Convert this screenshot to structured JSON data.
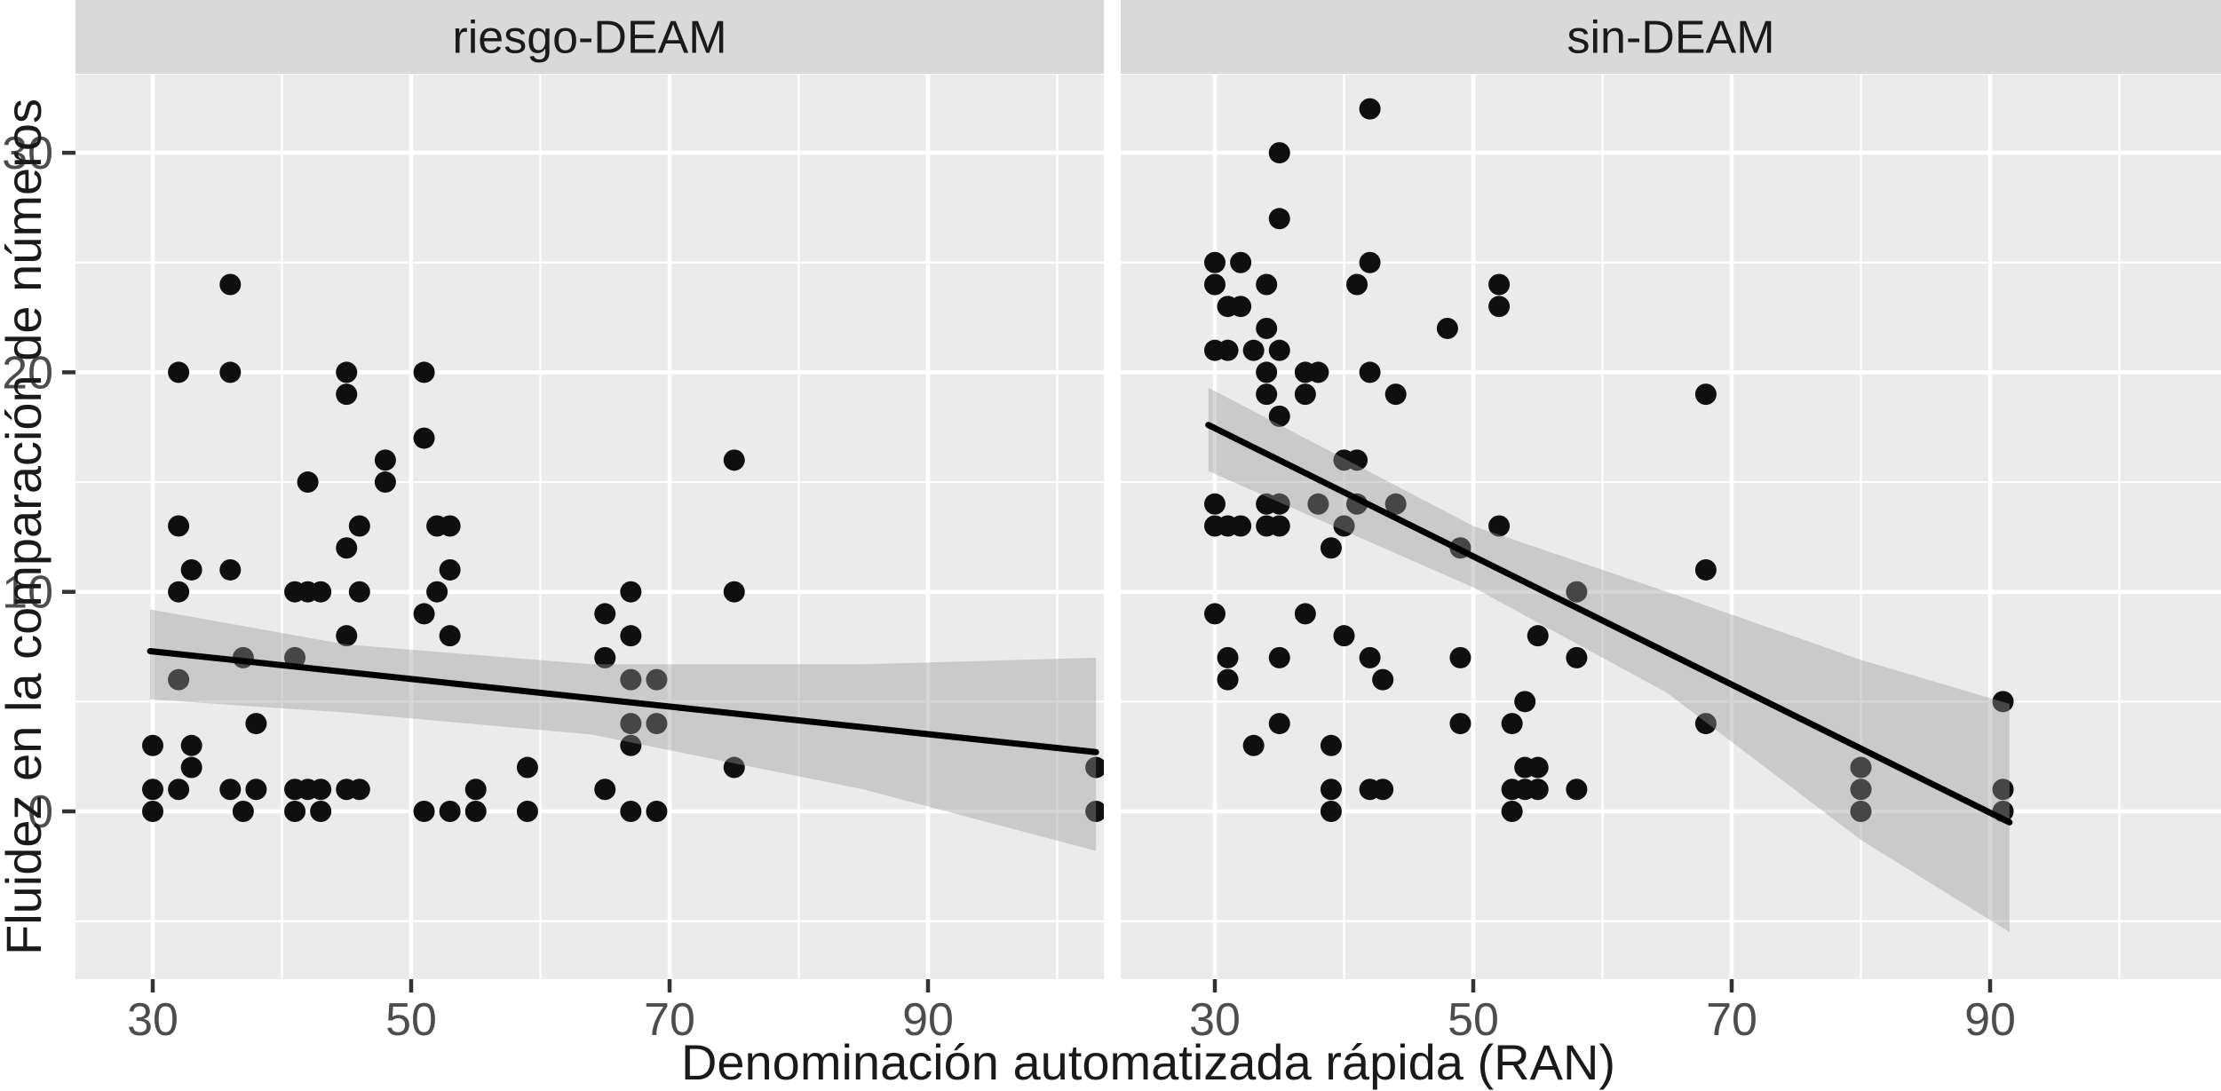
{
  "chart_data": {
    "type": "scatter",
    "xlabel": "Denominación automatizada rápida (RAN)",
    "ylabel": "Fluidez en la comparación de números",
    "x_major_ticks": [
      30,
      50,
      70,
      90
    ],
    "x_minor_ticks": [
      40,
      60,
      80,
      100
    ],
    "y_major_ticks": [
      0,
      10,
      20,
      30
    ],
    "y_minor_ticks": [
      -5,
      5,
      15,
      25
    ],
    "ylim": [
      -7.6,
      33.6
    ],
    "grid": "on",
    "legend_position": "none",
    "facets": [
      {
        "label": "riesgo-DEAM",
        "xlim": [
          24.0,
          103.6
        ],
        "points": [
          [
            36,
            24
          ],
          [
            32,
            20
          ],
          [
            36,
            20
          ],
          [
            45,
            20
          ],
          [
            51,
            20
          ],
          [
            45,
            19
          ],
          [
            51,
            17
          ],
          [
            48,
            16
          ],
          [
            75,
            16
          ],
          [
            42,
            15
          ],
          [
            48,
            15
          ],
          [
            32,
            13
          ],
          [
            46,
            13
          ],
          [
            52,
            13
          ],
          [
            53,
            13
          ],
          [
            45,
            12
          ],
          [
            33,
            11
          ],
          [
            36,
            11
          ],
          [
            53,
            11
          ],
          [
            32,
            10
          ],
          [
            41,
            10
          ],
          [
            42,
            10
          ],
          [
            43,
            10
          ],
          [
            46,
            10
          ],
          [
            52,
            10
          ],
          [
            67,
            10
          ],
          [
            75,
            10
          ],
          [
            51,
            9
          ],
          [
            65,
            9
          ],
          [
            45,
            8
          ],
          [
            53,
            8
          ],
          [
            67,
            8
          ],
          [
            37,
            7
          ],
          [
            41,
            7
          ],
          [
            65,
            7
          ],
          [
            32,
            6
          ],
          [
            67,
            6
          ],
          [
            69,
            6
          ],
          [
            38,
            4
          ],
          [
            67,
            4
          ],
          [
            69,
            4
          ],
          [
            30,
            3
          ],
          [
            33,
            3
          ],
          [
            67,
            3
          ],
          [
            33,
            2
          ],
          [
            59,
            2
          ],
          [
            75,
            2
          ],
          [
            103,
            2
          ],
          [
            30,
            1
          ],
          [
            32,
            1
          ],
          [
            36,
            1
          ],
          [
            38,
            1
          ],
          [
            41,
            1
          ],
          [
            42,
            1
          ],
          [
            43,
            1
          ],
          [
            45,
            1
          ],
          [
            46,
            1
          ],
          [
            55,
            1
          ],
          [
            65,
            1
          ],
          [
            30,
            0
          ],
          [
            37,
            0
          ],
          [
            41,
            0
          ],
          [
            43,
            0
          ],
          [
            51,
            0
          ],
          [
            53,
            0
          ],
          [
            55,
            0
          ],
          [
            59,
            0
          ],
          [
            67,
            0
          ],
          [
            69,
            0
          ],
          [
            103,
            0
          ]
        ],
        "smooth_line": [
          [
            29.8,
            7.3
          ],
          [
            103,
            2.7
          ]
        ],
        "ribbon_upper": [
          [
            29.8,
            9.2
          ],
          [
            45,
            7.6
          ],
          [
            64,
            6.7
          ],
          [
            85,
            6.7
          ],
          [
            103,
            7.0
          ]
        ],
        "ribbon_lower": [
          [
            29.8,
            5.1
          ],
          [
            45,
            4.5
          ],
          [
            64,
            3.5
          ],
          [
            85,
            1.0
          ],
          [
            103,
            -1.8
          ]
        ]
      },
      {
        "label": "sin-DEAM",
        "xlim": [
          22.7,
          107.9
        ],
        "points": [
          [
            42,
            32
          ],
          [
            35,
            30
          ],
          [
            35,
            27
          ],
          [
            30,
            25
          ],
          [
            32,
            25
          ],
          [
            42,
            25
          ],
          [
            30,
            24
          ],
          [
            34,
            24
          ],
          [
            41,
            24
          ],
          [
            52,
            24
          ],
          [
            31,
            23
          ],
          [
            32,
            23
          ],
          [
            52,
            23
          ],
          [
            34,
            22
          ],
          [
            48,
            22
          ],
          [
            30,
            21
          ],
          [
            31,
            21
          ],
          [
            33,
            21
          ],
          [
            35,
            21
          ],
          [
            34,
            20
          ],
          [
            37,
            20
          ],
          [
            38,
            20
          ],
          [
            42,
            20
          ],
          [
            34,
            19
          ],
          [
            37,
            19
          ],
          [
            44,
            19
          ],
          [
            68,
            19
          ],
          [
            35,
            18
          ],
          [
            40,
            16
          ],
          [
            41,
            16
          ],
          [
            30,
            14
          ],
          [
            34,
            14
          ],
          [
            35,
            14
          ],
          [
            38,
            14
          ],
          [
            41,
            14
          ],
          [
            44,
            14
          ],
          [
            30,
            13
          ],
          [
            31,
            13
          ],
          [
            32,
            13
          ],
          [
            34,
            13
          ],
          [
            35,
            13
          ],
          [
            40,
            13
          ],
          [
            52,
            13
          ],
          [
            39,
            12
          ],
          [
            49,
            12
          ],
          [
            68,
            11
          ],
          [
            58,
            10
          ],
          [
            30,
            9
          ],
          [
            37,
            9
          ],
          [
            40,
            8
          ],
          [
            55,
            8
          ],
          [
            31,
            7
          ],
          [
            35,
            7
          ],
          [
            42,
            7
          ],
          [
            49,
            7
          ],
          [
            58,
            7
          ],
          [
            31,
            6
          ],
          [
            43,
            6
          ],
          [
            54,
            5
          ],
          [
            91,
            5
          ],
          [
            35,
            4
          ],
          [
            49,
            4
          ],
          [
            53,
            4
          ],
          [
            68,
            4
          ],
          [
            33,
            3
          ],
          [
            39,
            3
          ],
          [
            54,
            2
          ],
          [
            55,
            2
          ],
          [
            80,
            2
          ],
          [
            39,
            1
          ],
          [
            42,
            1
          ],
          [
            43,
            1
          ],
          [
            53,
            1
          ],
          [
            54,
            1
          ],
          [
            55,
            1
          ],
          [
            58,
            1
          ],
          [
            80,
            1
          ],
          [
            91,
            1
          ],
          [
            39,
            0
          ],
          [
            53,
            0
          ],
          [
            80,
            0
          ],
          [
            91,
            0
          ]
        ],
        "smooth_line": [
          [
            29.5,
            17.6
          ],
          [
            91.5,
            -0.5
          ]
        ],
        "ribbon_upper": [
          [
            29.5,
            19.3
          ],
          [
            50,
            13.0
          ],
          [
            65,
            10.0
          ],
          [
            80,
            6.9
          ],
          [
            91.5,
            4.9
          ]
        ],
        "ribbon_lower": [
          [
            29.5,
            15.5
          ],
          [
            50,
            10.2
          ],
          [
            65,
            5.4
          ],
          [
            80,
            -1.3
          ],
          [
            91.5,
            -5.5
          ]
        ]
      }
    ],
    "style": {
      "panel_bg": "#EBEBEB",
      "strip_bg": "#D9D9D9",
      "grid_color": "#FFFFFF",
      "point_color": "#0F0F0F",
      "ribbon_fill": "#999999",
      "ribbon_alpha": 0.4,
      "line_color": "#000000",
      "tick_label_color": "#4D4D4D",
      "tick_mark_color": "#333333",
      "title_color": "#1A1A1A"
    }
  }
}
